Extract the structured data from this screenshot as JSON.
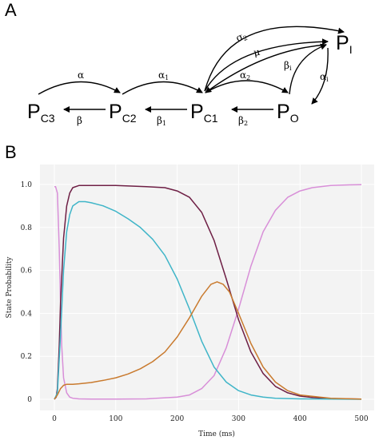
{
  "panel_a": {
    "label": "A",
    "states": [
      {
        "key": "PC3",
        "main": "P",
        "sub": "C3"
      },
      {
        "key": "PC2",
        "main": "P",
        "sub": "C2"
      },
      {
        "key": "PC1",
        "main": "P",
        "sub": "C1"
      },
      {
        "key": "PO",
        "main": "P",
        "sub": "O"
      },
      {
        "key": "PI",
        "main": "P",
        "sub": "I"
      }
    ],
    "rates": [
      {
        "key": "alpha",
        "main": "α",
        "sub": ""
      },
      {
        "key": "alpha1",
        "main": "α",
        "sub": "1"
      },
      {
        "key": "alpha2",
        "main": "α",
        "sub": "2"
      },
      {
        "key": "beta",
        "main": "β",
        "sub": ""
      },
      {
        "key": "beta1",
        "main": "β",
        "sub": "1"
      },
      {
        "key": "beta2",
        "main": "β",
        "sub": "2"
      },
      {
        "key": "sigma2",
        "main": "σ",
        "sub": "2"
      },
      {
        "key": "mu",
        "main": "μ",
        "sub": ""
      },
      {
        "key": "betai",
        "main": "β",
        "sub": "i"
      },
      {
        "key": "alphai",
        "main": "α",
        "sub": "i"
      }
    ]
  },
  "panel_b": {
    "label": "B",
    "chart_data": {
      "type": "line",
      "xlabel": "Time (ms)",
      "ylabel": "State Probability",
      "xlim": [
        0,
        500
      ],
      "ylim": [
        0,
        1.0
      ],
      "xticks": [
        0,
        100,
        200,
        300,
        400,
        500
      ],
      "yticks": [
        0,
        0.2,
        0.4,
        0.6,
        0.8,
        1.0
      ],
      "ytick_labels": [
        "0",
        "0.2",
        "0.4",
        "0.6",
        "0.8",
        "1.0"
      ],
      "grid": true,
      "series": [
        {
          "color": "#d88fd8",
          "x": [
            0,
            2,
            5,
            8,
            10,
            12,
            15,
            20,
            25,
            30,
            40,
            60,
            100,
            150,
            200,
            220,
            240,
            260,
            280,
            300,
            320,
            340,
            360,
            380,
            400,
            420,
            450,
            480,
            500
          ],
          "y": [
            0.99,
            0.99,
            0.96,
            0.7,
            0.45,
            0.25,
            0.1,
            0.03,
            0.01,
            0.005,
            0.002,
            0.001,
            0.001,
            0.002,
            0.01,
            0.02,
            0.05,
            0.11,
            0.24,
            0.42,
            0.62,
            0.78,
            0.88,
            0.94,
            0.97,
            0.985,
            0.995,
            0.998,
            0.999
          ]
        },
        {
          "color": "#6e1f45",
          "x": [
            0,
            3,
            5,
            8,
            10,
            15,
            20,
            25,
            30,
            40,
            50,
            100,
            150,
            180,
            200,
            220,
            240,
            260,
            280,
            300,
            320,
            340,
            360,
            380,
            400,
            420,
            450,
            500
          ],
          "y": [
            0.0,
            0.01,
            0.05,
            0.25,
            0.45,
            0.75,
            0.9,
            0.96,
            0.985,
            0.995,
            0.995,
            0.995,
            0.99,
            0.985,
            0.97,
            0.94,
            0.87,
            0.74,
            0.56,
            0.37,
            0.22,
            0.12,
            0.06,
            0.03,
            0.015,
            0.008,
            0.003,
            0.001
          ]
        },
        {
          "color": "#3fb5c8",
          "x": [
            0,
            5,
            10,
            15,
            20,
            25,
            30,
            40,
            50,
            60,
            80,
            100,
            120,
            140,
            160,
            180,
            200,
            220,
            240,
            260,
            280,
            300,
            320,
            340,
            360,
            400,
            450,
            500
          ],
          "y": [
            0.0,
            0.03,
            0.3,
            0.6,
            0.78,
            0.86,
            0.9,
            0.92,
            0.92,
            0.915,
            0.9,
            0.875,
            0.84,
            0.8,
            0.745,
            0.67,
            0.56,
            0.42,
            0.27,
            0.15,
            0.08,
            0.04,
            0.02,
            0.01,
            0.005,
            0.002,
            0.001,
            0.0
          ]
        },
        {
          "color": "#c97a2e",
          "x": [
            0,
            5,
            10,
            15,
            20,
            25,
            30,
            40,
            60,
            80,
            100,
            120,
            140,
            160,
            180,
            200,
            220,
            240,
            255,
            265,
            275,
            285,
            300,
            320,
            340,
            360,
            380,
            400,
            450,
            500
          ],
          "y": [
            0.0,
            0.02,
            0.05,
            0.065,
            0.07,
            0.07,
            0.07,
            0.072,
            0.078,
            0.088,
            0.1,
            0.118,
            0.142,
            0.175,
            0.22,
            0.29,
            0.38,
            0.48,
            0.535,
            0.547,
            0.535,
            0.5,
            0.4,
            0.26,
            0.15,
            0.08,
            0.04,
            0.02,
            0.005,
            0.001
          ]
        }
      ]
    }
  }
}
